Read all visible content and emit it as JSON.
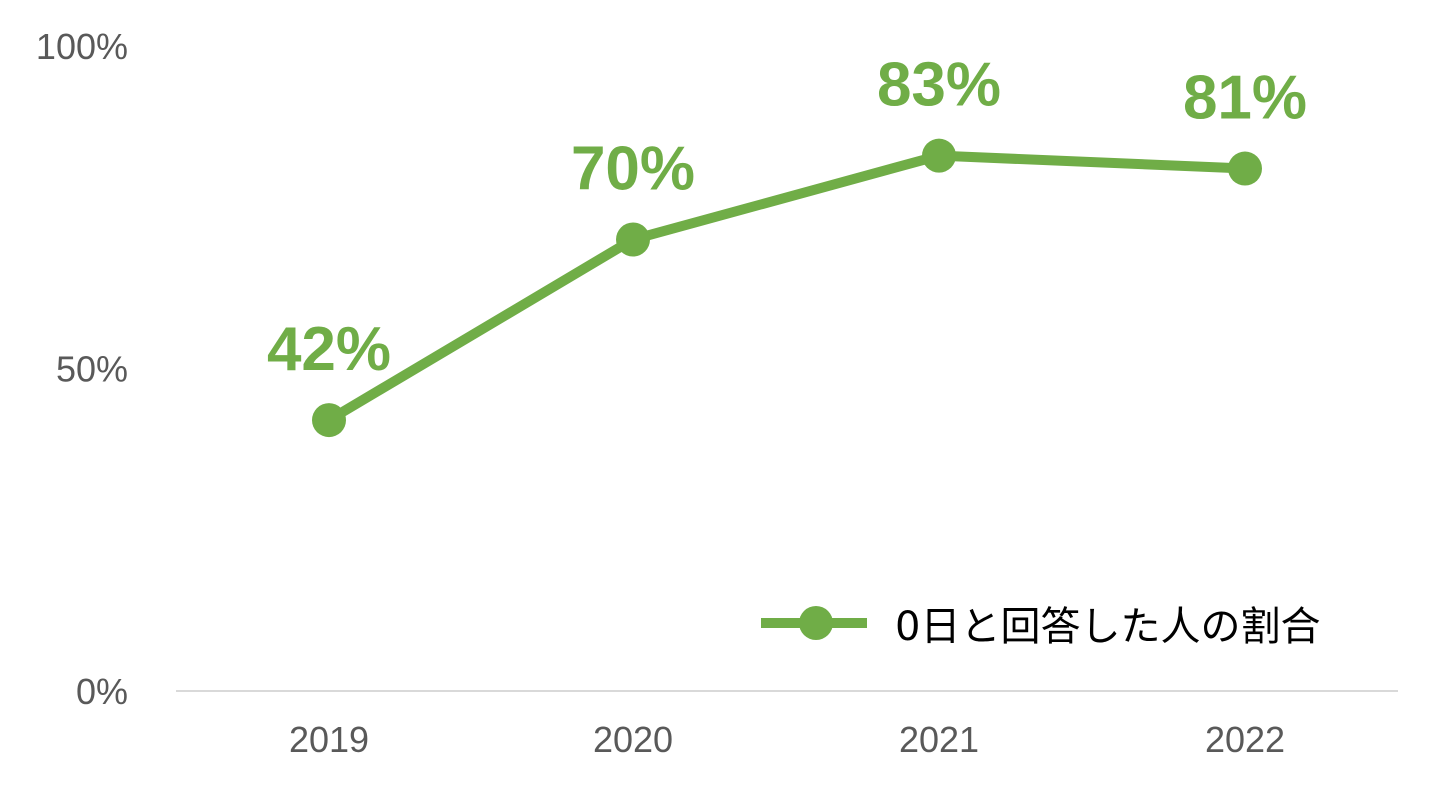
{
  "chart_data": {
    "type": "line",
    "title": "",
    "xlabel": "",
    "ylabel": "",
    "categories": [
      "2019",
      "2020",
      "2021",
      "2022"
    ],
    "series": [
      {
        "name": "0日と回答した人の割合",
        "values": [
          42,
          70,
          83,
          81
        ],
        "labels": [
          "42%",
          "70%",
          "83%",
          "81%"
        ],
        "color": "#70AD47"
      }
    ],
    "ylim": [
      0,
      100
    ],
    "yticks": [
      0,
      50,
      100
    ],
    "ytick_labels": [
      "0%",
      "50%",
      "100%"
    ],
    "grid": false,
    "legend": {
      "position": "bottom-right",
      "label": "0日と回答した人の割合"
    },
    "colors": {
      "series": "#70AD47",
      "axis": "#D9D9D9",
      "tick_text": "#595959"
    }
  }
}
